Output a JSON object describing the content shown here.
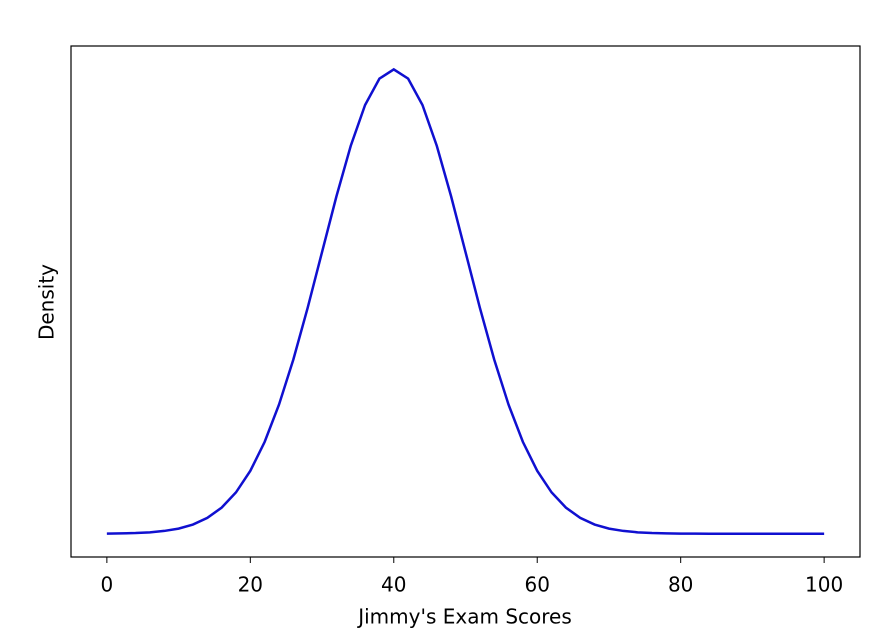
{
  "chart_data": {
    "type": "line",
    "xlabel": "Jimmy's Exam Scores",
    "ylabel": "Density",
    "x": [
      0,
      2,
      4,
      6,
      8,
      10,
      12,
      14,
      16,
      18,
      20,
      22,
      24,
      26,
      28,
      30,
      32,
      34,
      36,
      38,
      40,
      42,
      44,
      46,
      48,
      50,
      52,
      54,
      56,
      58,
      60,
      62,
      64,
      66,
      68,
      70,
      72,
      74,
      76,
      78,
      80,
      82,
      84,
      86,
      88,
      90,
      92,
      94,
      96,
      98,
      100
    ],
    "series": [
      {
        "name": "Density",
        "color": "#1010d0",
        "values": [
          1e-05,
          3e-05,
          6e-05,
          0.00012,
          0.00024,
          0.00044,
          0.00079,
          0.00136,
          0.00224,
          0.00355,
          0.0054,
          0.00789,
          0.01109,
          0.01497,
          0.01942,
          0.0242,
          0.02897,
          0.03332,
          0.03683,
          0.0391,
          0.03989,
          0.0391,
          0.03683,
          0.03332,
          0.02897,
          0.0242,
          0.01942,
          0.01497,
          0.01109,
          0.00789,
          0.0054,
          0.00355,
          0.00224,
          0.00136,
          0.00079,
          0.00044,
          0.00024,
          0.00012,
          6e-05,
          3e-05,
          1e-05,
          1e-05,
          0,
          0,
          0,
          0,
          0,
          0,
          0,
          0,
          0
        ]
      }
    ],
    "xlim": [
      -5,
      105
    ],
    "xticks": [
      0,
      20,
      40,
      60,
      80,
      100
    ],
    "ylim": [
      -0.002,
      0.0419
    ]
  }
}
